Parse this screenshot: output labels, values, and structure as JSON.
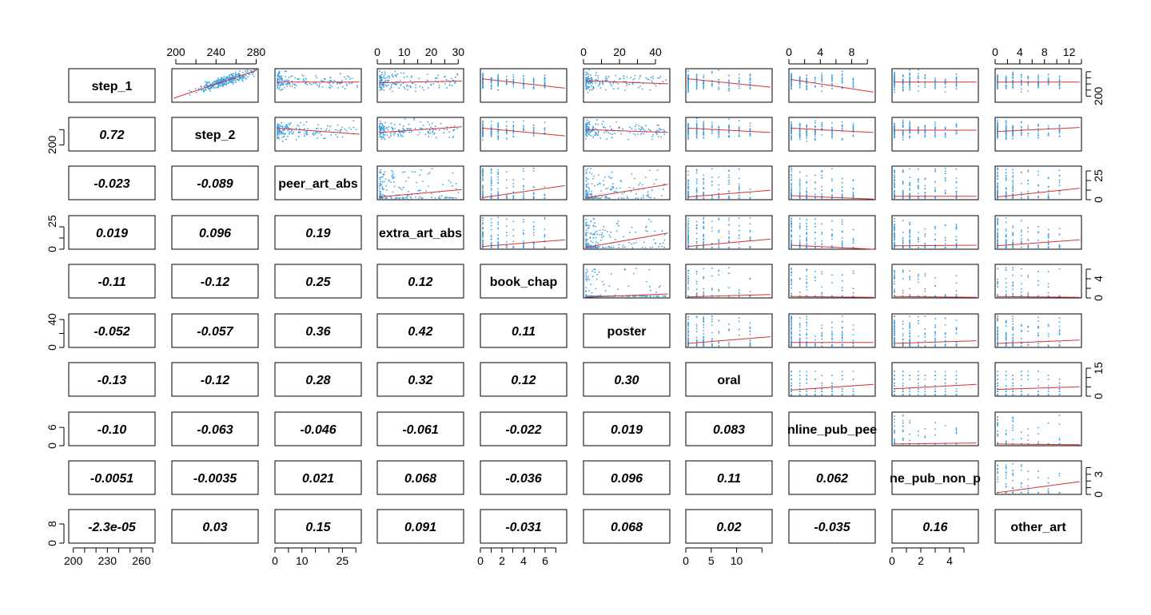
{
  "chart_data": {
    "type": "scatter",
    "title": "",
    "variables": [
      "step_1",
      "step_2",
      "peer_art_abs",
      "extra_art_abs",
      "book_chap",
      "poster",
      "oral",
      "online_pub_peer",
      "online_pub_non_peer",
      "other_art"
    ],
    "diagonal_labels": [
      "step_1",
      "step_2",
      "peer_art_abs",
      "extra_art_abs",
      "book_chap",
      "poster",
      "oral",
      "nline_pub_pee",
      "ne_pub_non_p",
      "other_art"
    ],
    "correlations": [
      {
        "row": 1,
        "col": 0,
        "value": "0.72"
      },
      {
        "row": 2,
        "col": 0,
        "value": "-0.023"
      },
      {
        "row": 2,
        "col": 1,
        "value": "-0.089"
      },
      {
        "row": 3,
        "col": 0,
        "value": "0.019"
      },
      {
        "row": 3,
        "col": 1,
        "value": "0.096"
      },
      {
        "row": 3,
        "col": 2,
        "value": "0.19"
      },
      {
        "row": 4,
        "col": 0,
        "value": "-0.11"
      },
      {
        "row": 4,
        "col": 1,
        "value": "-0.12"
      },
      {
        "row": 4,
        "col": 2,
        "value": "0.25"
      },
      {
        "row": 4,
        "col": 3,
        "value": "0.12"
      },
      {
        "row": 5,
        "col": 0,
        "value": "-0.052"
      },
      {
        "row": 5,
        "col": 1,
        "value": "-0.057"
      },
      {
        "row": 5,
        "col": 2,
        "value": "0.36"
      },
      {
        "row": 5,
        "col": 3,
        "value": "0.42"
      },
      {
        "row": 5,
        "col": 4,
        "value": "0.11"
      },
      {
        "row": 6,
        "col": 0,
        "value": "-0.13"
      },
      {
        "row": 6,
        "col": 1,
        "value": "-0.12"
      },
      {
        "row": 6,
        "col": 2,
        "value": "0.28"
      },
      {
        "row": 6,
        "col": 3,
        "value": "0.32"
      },
      {
        "row": 6,
        "col": 4,
        "value": "0.12"
      },
      {
        "row": 6,
        "col": 5,
        "value": "0.30"
      },
      {
        "row": 7,
        "col": 0,
        "value": "-0.10"
      },
      {
        "row": 7,
        "col": 1,
        "value": "-0.063"
      },
      {
        "row": 7,
        "col": 2,
        "value": "-0.046"
      },
      {
        "row": 7,
        "col": 3,
        "value": "-0.061"
      },
      {
        "row": 7,
        "col": 4,
        "value": "-0.022"
      },
      {
        "row": 7,
        "col": 5,
        "value": "0.019"
      },
      {
        "row": 7,
        "col": 6,
        "value": "0.083"
      },
      {
        "row": 8,
        "col": 0,
        "value": "-0.0051"
      },
      {
        "row": 8,
        "col": 1,
        "value": "-0.0035"
      },
      {
        "row": 8,
        "col": 2,
        "value": "0.021"
      },
      {
        "row": 8,
        "col": 3,
        "value": "0.068"
      },
      {
        "row": 8,
        "col": 4,
        "value": "-0.036"
      },
      {
        "row": 8,
        "col": 5,
        "value": "0.096"
      },
      {
        "row": 8,
        "col": 6,
        "value": "0.11"
      },
      {
        "row": 8,
        "col": 7,
        "value": "0.062"
      },
      {
        "row": 9,
        "col": 0,
        "value": "-2.3e-05"
      },
      {
        "row": 9,
        "col": 1,
        "value": "0.03"
      },
      {
        "row": 9,
        "col": 2,
        "value": "0.15"
      },
      {
        "row": 9,
        "col": 3,
        "value": "0.091"
      },
      {
        "row": 9,
        "col": 4,
        "value": "-0.031"
      },
      {
        "row": 9,
        "col": 5,
        "value": "0.068"
      },
      {
        "row": 9,
        "col": 6,
        "value": "0.02"
      },
      {
        "row": 9,
        "col": 7,
        "value": "-0.035"
      },
      {
        "row": 9,
        "col": 8,
        "value": "0.16"
      }
    ],
    "axes": {
      "top": [
        {
          "col": 1,
          "range": [
            196,
            282
          ],
          "ticks": [
            "200",
            "240",
            "280"
          ],
          "minor": [
            200,
            220,
            240,
            260,
            280
          ]
        },
        {
          "col": 3,
          "range": [
            0,
            32
          ],
          "ticks": [
            "0",
            "10",
            "20",
            "30"
          ],
          "minor": [
            0,
            5,
            10,
            15,
            20,
            25,
            30
          ]
        },
        {
          "col": 5,
          "range": [
            0,
            48
          ],
          "ticks": [
            "0",
            "20",
            "40"
          ],
          "minor": [
            0,
            10,
            20,
            30,
            40
          ]
        },
        {
          "col": 7,
          "range": [
            0,
            11
          ],
          "ticks": [
            "0",
            "4",
            "8"
          ],
          "minor": [
            0,
            2,
            4,
            6,
            8,
            10
          ]
        },
        {
          "col": 9,
          "range": [
            0,
            14
          ],
          "ticks": [
            "0",
            "4",
            "8",
            "12"
          ],
          "minor": [
            0,
            2,
            4,
            6,
            8,
            10,
            12,
            14
          ]
        }
      ],
      "bottom": [
        {
          "col": 0,
          "range": [
            196,
            272
          ],
          "ticks": [
            "200",
            "230",
            "260"
          ],
          "minor": [
            200,
            210,
            220,
            230,
            240,
            250,
            260,
            270
          ]
        },
        {
          "col": 2,
          "range": [
            0,
            32
          ],
          "ticks": [
            "0",
            "10",
            "25"
          ],
          "minor": [
            0,
            5,
            10,
            15,
            20,
            25,
            30
          ]
        },
        {
          "col": 4,
          "range": [
            0,
            8
          ],
          "ticks": [
            "0",
            "2",
            "4",
            "6"
          ],
          "minor": [
            0,
            1,
            2,
            3,
            4,
            5,
            6,
            7
          ]
        },
        {
          "col": 6,
          "range": [
            0,
            17
          ],
          "ticks": [
            "0",
            "5",
            "10"
          ],
          "minor": [
            0,
            5,
            10,
            15
          ]
        },
        {
          "col": 8,
          "range": [
            0,
            6
          ],
          "ticks": [
            "0",
            "2",
            "4"
          ],
          "minor": [
            0,
            1,
            2,
            3,
            4,
            5
          ]
        }
      ],
      "left": [
        {
          "row": 1,
          "range": [
            180,
            290
          ],
          "ticks": [
            "200"
          ],
          "minor": [
            200,
            250
          ]
        },
        {
          "row": 3,
          "range": [
            0,
            30
          ],
          "ticks": [
            "0",
            "25"
          ],
          "minor": [
            0,
            10,
            20
          ]
        },
        {
          "row": 5,
          "range": [
            0,
            48
          ],
          "ticks": [
            "0",
            "40"
          ],
          "minor": [
            0,
            20,
            40
          ]
        },
        {
          "row": 7,
          "range": [
            0,
            11
          ],
          "ticks": [
            "0",
            "6"
          ],
          "minor": [
            0,
            6
          ]
        },
        {
          "row": 9,
          "range": [
            0,
            14
          ],
          "ticks": [
            "0",
            "8"
          ],
          "minor": [
            0,
            8
          ]
        }
      ],
      "right": [
        {
          "row": 0,
          "range": [
            180,
            290
          ],
          "ticks": [
            "200"
          ],
          "minor": [
            200,
            220,
            240,
            260,
            280
          ]
        },
        {
          "row": 2,
          "range": [
            0,
            35
          ],
          "ticks": [
            "0",
            "25"
          ],
          "minor": [
            0,
            10,
            20,
            30
          ]
        },
        {
          "row": 4,
          "range": [
            0,
            7
          ],
          "ticks": [
            "0",
            "4"
          ],
          "minor": [
            0,
            2,
            4,
            6
          ]
        },
        {
          "row": 6,
          "range": [
            0,
            18
          ],
          "ticks": [
            "0",
            "15"
          ],
          "minor": [
            0,
            5,
            10,
            15
          ]
        },
        {
          "row": 8,
          "range": [
            0,
            5
          ],
          "ticks": [
            "0",
            "3"
          ],
          "minor": [
            0,
            1,
            2,
            3,
            4
          ]
        }
      ]
    },
    "panels": [
      {
        "row": 0,
        "col": 1,
        "dist_x": "normal",
        "dist_y": "normal",
        "trend": [
          0.02,
          0.12,
          0.98,
          0.95
        ],
        "note": "step_2 vs step_1 strong positive"
      },
      {
        "row": 0,
        "col": 2,
        "dist_x": "skew",
        "dist_y": "normal",
        "trend": [
          0.02,
          0.6,
          0.98,
          0.6
        ]
      },
      {
        "row": 0,
        "col": 3,
        "dist_x": "skew",
        "dist_y": "normal",
        "trend": [
          0.02,
          0.58,
          0.98,
          0.63
        ]
      },
      {
        "row": 0,
        "col": 4,
        "dist_x": "discrete",
        "dist_y": "normal",
        "trend": [
          0.02,
          0.7,
          0.98,
          0.42
        ]
      },
      {
        "row": 0,
        "col": 5,
        "dist_x": "skew",
        "dist_y": "normal",
        "trend": [
          0.02,
          0.64,
          0.98,
          0.55
        ]
      },
      {
        "row": 0,
        "col": 6,
        "dist_x": "discrete",
        "dist_y": "normal",
        "trend": [
          0.02,
          0.7,
          0.98,
          0.45
        ]
      },
      {
        "row": 0,
        "col": 7,
        "dist_x": "discrete",
        "dist_y": "normal",
        "trend": [
          0.02,
          0.68,
          0.98,
          0.3
        ]
      },
      {
        "row": 0,
        "col": 8,
        "dist_x": "discrete",
        "dist_y": "normal",
        "trend": [
          0.02,
          0.6,
          0.98,
          0.6
        ]
      },
      {
        "row": 0,
        "col": 9,
        "dist_x": "discrete",
        "dist_y": "normal",
        "trend": [
          0.02,
          0.6,
          0.98,
          0.6
        ]
      },
      {
        "row": 1,
        "col": 2,
        "dist_x": "skew",
        "dist_y": "normal",
        "trend": [
          0.02,
          0.68,
          0.98,
          0.5
        ]
      },
      {
        "row": 1,
        "col": 3,
        "dist_x": "skew",
        "dist_y": "normal",
        "trend": [
          0.02,
          0.55,
          0.98,
          0.72
        ]
      },
      {
        "row": 1,
        "col": 4,
        "dist_x": "discrete",
        "dist_y": "normal",
        "trend": [
          0.02,
          0.68,
          0.98,
          0.45
        ]
      },
      {
        "row": 1,
        "col": 5,
        "dist_x": "skew",
        "dist_y": "normal",
        "trend": [
          0.02,
          0.64,
          0.98,
          0.55
        ]
      },
      {
        "row": 1,
        "col": 6,
        "dist_x": "discrete",
        "dist_y": "normal",
        "trend": [
          0.02,
          0.68,
          0.98,
          0.55
        ]
      },
      {
        "row": 1,
        "col": 7,
        "dist_x": "discrete",
        "dist_y": "normal",
        "trend": [
          0.02,
          0.68,
          0.98,
          0.55
        ]
      },
      {
        "row": 1,
        "col": 8,
        "dist_x": "discrete",
        "dist_y": "normal",
        "trend": [
          0.02,
          0.62,
          0.98,
          0.62
        ]
      },
      {
        "row": 1,
        "col": 9,
        "dist_x": "discrete",
        "dist_y": "normal",
        "trend": [
          0.02,
          0.58,
          0.98,
          0.7
        ]
      },
      {
        "row": 2,
        "col": 3,
        "dist_x": "skew",
        "dist_y": "skew",
        "trend": [
          0.02,
          0.08,
          0.98,
          0.3
        ]
      },
      {
        "row": 2,
        "col": 4,
        "dist_x": "discrete",
        "dist_y": "skew",
        "trend": [
          0.02,
          0.06,
          0.98,
          0.42
        ]
      },
      {
        "row": 2,
        "col": 5,
        "dist_x": "skew",
        "dist_y": "skew",
        "trend": [
          0.02,
          0.05,
          0.98,
          0.46
        ]
      },
      {
        "row": 2,
        "col": 6,
        "dist_x": "discrete",
        "dist_y": "skew",
        "trend": [
          0.02,
          0.08,
          0.98,
          0.28
        ]
      },
      {
        "row": 2,
        "col": 7,
        "dist_x": "discrete",
        "dist_y": "skew",
        "trend": [
          0.02,
          0.12,
          0.98,
          0.02
        ]
      },
      {
        "row": 2,
        "col": 8,
        "dist_x": "discrete",
        "dist_y": "skew",
        "trend": [
          0.02,
          0.1,
          0.98,
          0.1
        ]
      },
      {
        "row": 2,
        "col": 9,
        "dist_x": "discrete",
        "dist_y": "skew",
        "trend": [
          0.02,
          0.08,
          0.98,
          0.34
        ]
      },
      {
        "row": 3,
        "col": 4,
        "dist_x": "discrete",
        "dist_y": "skew",
        "trend": [
          0.02,
          0.08,
          0.98,
          0.28
        ]
      },
      {
        "row": 3,
        "col": 5,
        "dist_x": "skew",
        "dist_y": "skew",
        "trend": [
          0.02,
          0.05,
          0.98,
          0.48
        ]
      },
      {
        "row": 3,
        "col": 6,
        "dist_x": "discrete",
        "dist_y": "skew",
        "trend": [
          0.02,
          0.08,
          0.98,
          0.3
        ]
      },
      {
        "row": 3,
        "col": 7,
        "dist_x": "discrete",
        "dist_y": "skew",
        "trend": [
          0.02,
          0.12,
          0.98,
          0.0
        ]
      },
      {
        "row": 3,
        "col": 8,
        "dist_x": "discrete",
        "dist_y": "skew",
        "trend": [
          0.02,
          0.1,
          0.98,
          0.12
        ]
      },
      {
        "row": 3,
        "col": 9,
        "dist_x": "discrete",
        "dist_y": "skew",
        "trend": [
          0.02,
          0.1,
          0.98,
          0.28
        ]
      },
      {
        "row": 4,
        "col": 5,
        "dist_x": "skew",
        "dist_y": "sparse",
        "trend": [
          0.02,
          0.02,
          0.98,
          0.12
        ]
      },
      {
        "row": 4,
        "col": 6,
        "dist_x": "discrete",
        "dist_y": "sparse",
        "trend": [
          0.02,
          0.03,
          0.98,
          0.1
        ]
      },
      {
        "row": 4,
        "col": 7,
        "dist_x": "discrete",
        "dist_y": "sparse",
        "trend": [
          0.02,
          0.04,
          0.98,
          0.02
        ]
      },
      {
        "row": 4,
        "col": 8,
        "dist_x": "discrete",
        "dist_y": "sparse",
        "trend": [
          0.02,
          0.04,
          0.98,
          0.02
        ]
      },
      {
        "row": 4,
        "col": 9,
        "dist_x": "discrete",
        "dist_y": "sparse",
        "trend": [
          0.02,
          0.04,
          0.98,
          0.02
        ]
      },
      {
        "row": 5,
        "col": 6,
        "dist_x": "discrete",
        "dist_y": "skew",
        "trend": [
          0.02,
          0.12,
          0.98,
          0.32
        ]
      },
      {
        "row": 5,
        "col": 7,
        "dist_x": "discrete",
        "dist_y": "skew",
        "trend": [
          0.02,
          0.15,
          0.98,
          0.15
        ]
      },
      {
        "row": 5,
        "col": 8,
        "dist_x": "discrete",
        "dist_y": "skew",
        "trend": [
          0.02,
          0.12,
          0.98,
          0.2
        ]
      },
      {
        "row": 5,
        "col": 9,
        "dist_x": "discrete",
        "dist_y": "skew",
        "trend": [
          0.02,
          0.12,
          0.98,
          0.22
        ]
      },
      {
        "row": 6,
        "col": 7,
        "dist_x": "discrete",
        "dist_y": "discrete",
        "trend": [
          0.02,
          0.18,
          0.98,
          0.35
        ]
      },
      {
        "row": 6,
        "col": 8,
        "dist_x": "discrete",
        "dist_y": "discrete",
        "trend": [
          0.02,
          0.22,
          0.98,
          0.35
        ]
      },
      {
        "row": 6,
        "col": 9,
        "dist_x": "discrete",
        "dist_y": "discrete",
        "trend": [
          0.02,
          0.2,
          0.98,
          0.28
        ]
      },
      {
        "row": 7,
        "col": 8,
        "dist_x": "discrete",
        "dist_y": "sparse",
        "trend": [
          0.02,
          0.05,
          0.98,
          0.08
        ]
      },
      {
        "row": 7,
        "col": 9,
        "dist_x": "discrete",
        "dist_y": "sparse",
        "trend": [
          0.02,
          0.05,
          0.98,
          0.03
        ]
      },
      {
        "row": 8,
        "col": 9,
        "dist_x": "discrete",
        "dist_y": "sparse",
        "trend": [
          0.02,
          0.05,
          0.98,
          0.38
        ]
      }
    ],
    "colors": {
      "points": "#3a9fe0",
      "trend": "#d93030",
      "text": "#000000",
      "frame": "#000000"
    },
    "grid": false,
    "legend": "none"
  }
}
